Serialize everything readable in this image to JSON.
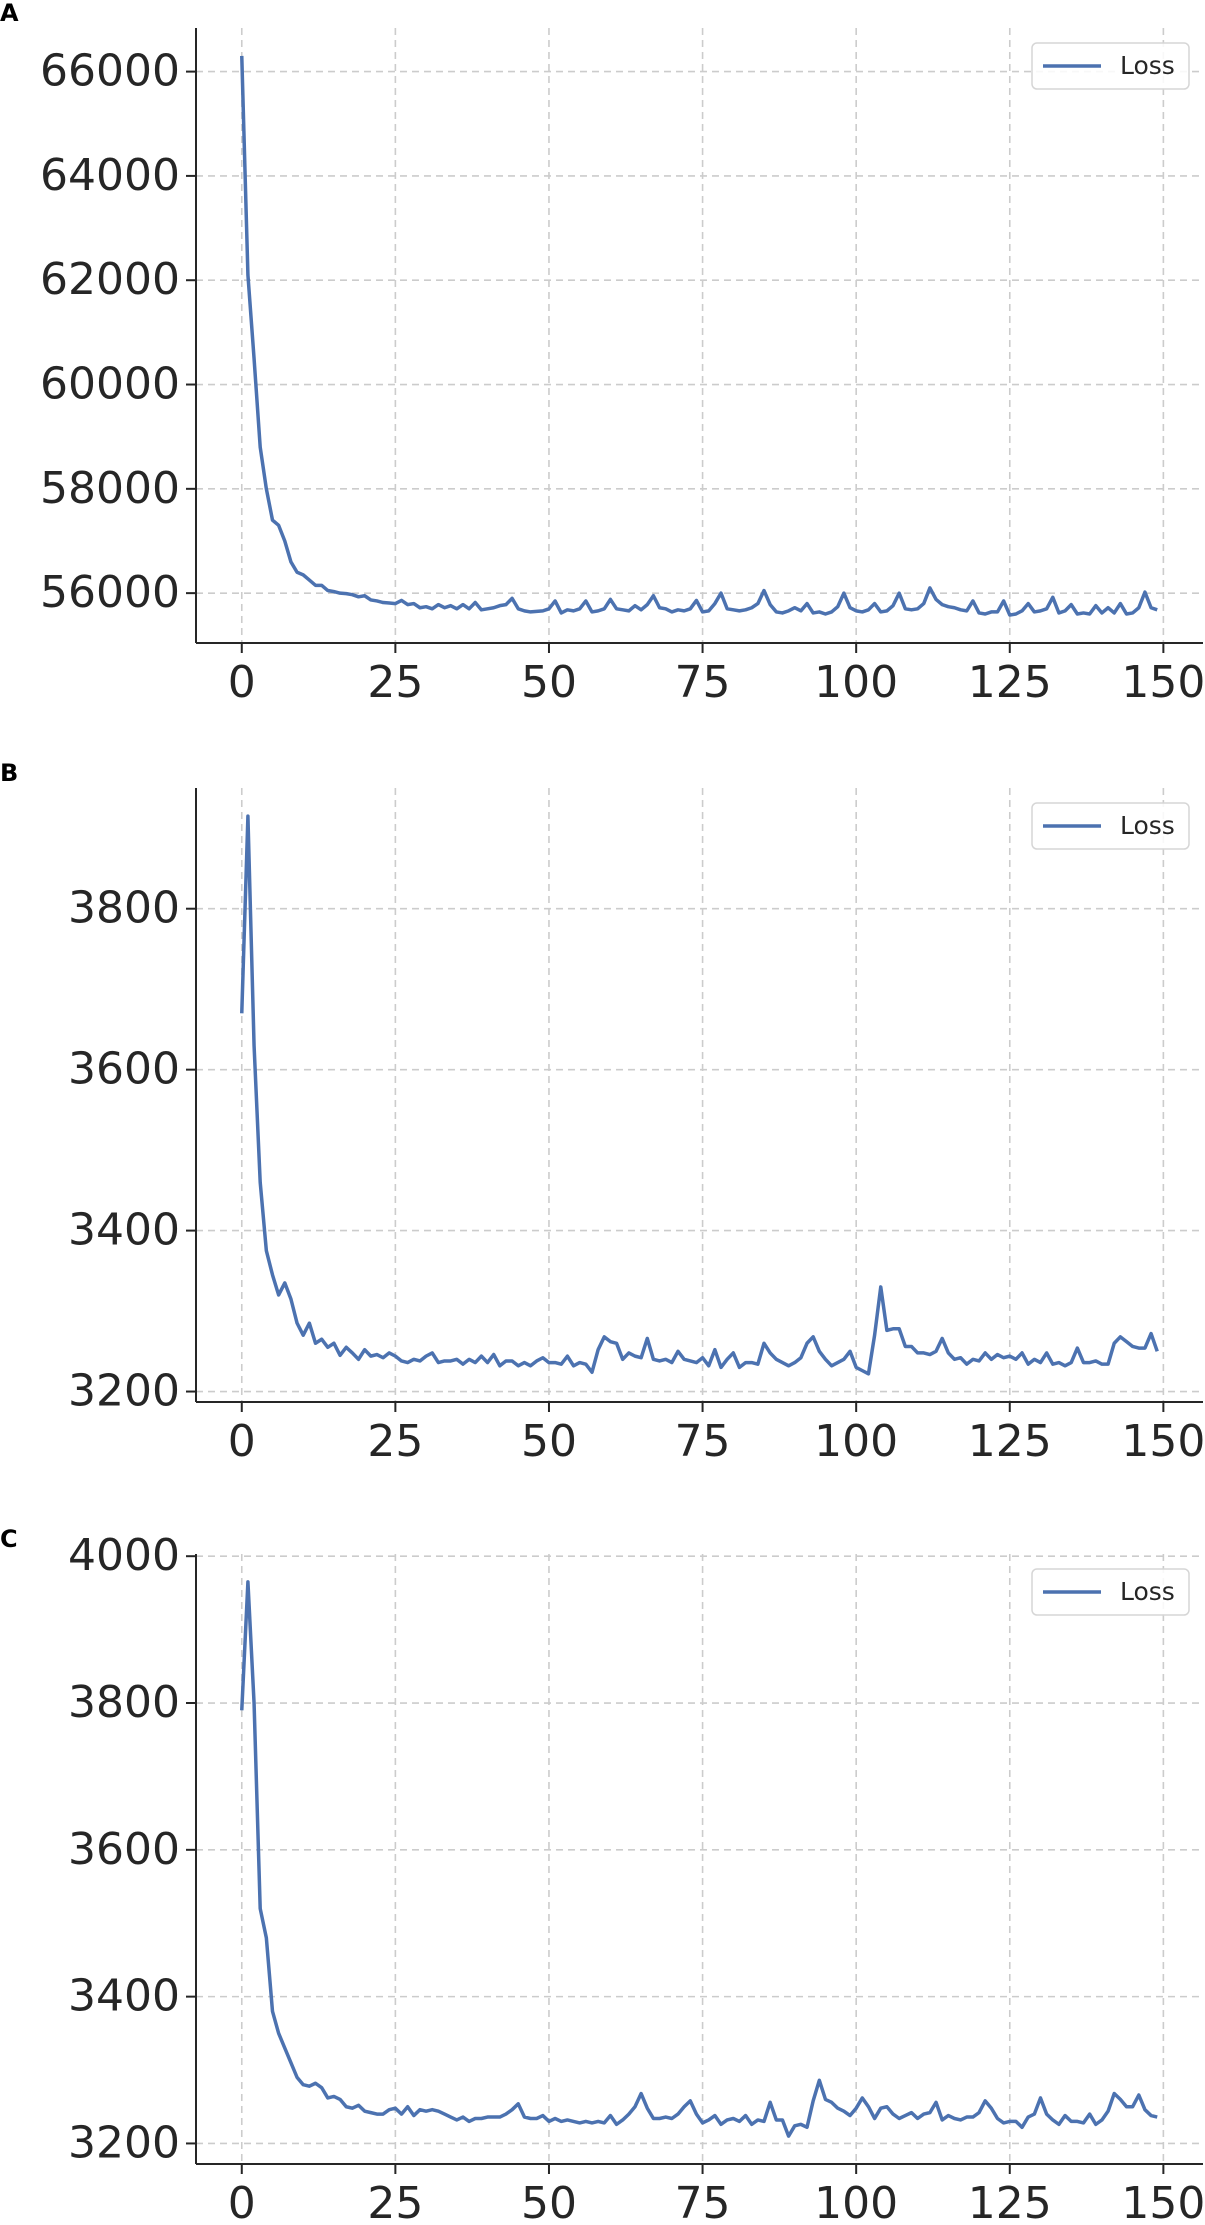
{
  "chart_data": [
    {
      "type": "line",
      "panel_label": "A",
      "x": [
        0,
        1,
        2,
        3,
        4,
        5,
        6,
        7,
        8,
        9,
        10,
        11,
        12,
        13,
        14,
        15,
        16,
        17,
        18,
        19,
        20,
        21,
        22,
        23,
        24,
        25,
        26,
        27,
        28,
        29,
        30,
        31,
        32,
        33,
        34,
        35,
        36,
        37,
        38,
        39,
        40,
        41,
        42,
        43,
        44,
        45,
        46,
        47,
        48,
        49,
        50,
        51,
        52,
        53,
        54,
        55,
        56,
        57,
        58,
        59,
        60,
        61,
        62,
        63,
        64,
        65,
        66,
        67,
        68,
        69,
        70,
        71,
        72,
        73,
        74,
        75,
        76,
        77,
        78,
        79,
        80,
        81,
        82,
        83,
        84,
        85,
        86,
        87,
        88,
        89,
        90,
        91,
        92,
        93,
        94,
        95,
        96,
        97,
        98,
        99,
        100,
        101,
        102,
        103,
        104,
        105,
        106,
        107,
        108,
        109,
        110,
        111,
        112,
        113,
        114,
        115,
        116,
        117,
        118,
        119,
        120,
        121,
        122,
        123,
        124,
        125,
        126,
        127,
        128,
        129,
        130,
        131,
        132,
        133,
        134,
        135,
        136,
        137,
        138,
        139,
        140,
        141,
        142,
        143,
        144,
        145,
        146,
        147,
        148,
        149
      ],
      "series": [
        {
          "name": "Loss",
          "color": "#4c72b0",
          "values": [
            66300,
            62100,
            60500,
            58800,
            58000,
            57400,
            57300,
            57000,
            56600,
            56400,
            56350,
            56250,
            56150,
            56150,
            56050,
            56030,
            56000,
            55990,
            55970,
            55930,
            55950,
            55870,
            55850,
            55820,
            55810,
            55800,
            55860,
            55780,
            55800,
            55720,
            55740,
            55700,
            55780,
            55720,
            55760,
            55700,
            55780,
            55700,
            55820,
            55680,
            55700,
            55720,
            55760,
            55780,
            55900,
            55700,
            55660,
            55640,
            55650,
            55660,
            55700,
            55850,
            55620,
            55680,
            55660,
            55700,
            55850,
            55640,
            55660,
            55700,
            55880,
            55700,
            55680,
            55660,
            55760,
            55680,
            55780,
            55950,
            55720,
            55700,
            55640,
            55680,
            55660,
            55700,
            55860,
            55640,
            55660,
            55800,
            56000,
            55700,
            55680,
            55660,
            55680,
            55720,
            55800,
            56050,
            55780,
            55640,
            55620,
            55660,
            55720,
            55660,
            55800,
            55620,
            55640,
            55600,
            55640,
            55740,
            56000,
            55720,
            55660,
            55640,
            55680,
            55800,
            55640,
            55660,
            55760,
            56000,
            55700,
            55680,
            55700,
            55800,
            56100,
            55880,
            55780,
            55740,
            55720,
            55680,
            55660,
            55850,
            55620,
            55600,
            55640,
            55640,
            55850,
            55580,
            55600,
            55660,
            55800,
            55640,
            55660,
            55700,
            55920,
            55620,
            55660,
            55780,
            55600,
            55620,
            55600,
            55760,
            55620,
            55720,
            55620,
            55800,
            55600,
            55620,
            55720,
            56020,
            55720,
            55680
          ]
        }
      ],
      "xlim": [
        -7.45,
        156.45
      ],
      "ylim": [
        55044,
        66836
      ],
      "xticks": [
        0,
        25,
        50,
        75,
        100,
        125,
        150
      ],
      "yticks": [
        56000,
        58000,
        60000,
        62000,
        64000,
        66000
      ],
      "grid": true,
      "legend": "upper right"
    },
    {
      "type": "line",
      "panel_label": "B",
      "x": [
        0,
        1,
        2,
        3,
        4,
        5,
        6,
        7,
        8,
        9,
        10,
        11,
        12,
        13,
        14,
        15,
        16,
        17,
        18,
        19,
        20,
        21,
        22,
        23,
        24,
        25,
        26,
        27,
        28,
        29,
        30,
        31,
        32,
        33,
        34,
        35,
        36,
        37,
        38,
        39,
        40,
        41,
        42,
        43,
        44,
        45,
        46,
        47,
        48,
        49,
        50,
        51,
        52,
        53,
        54,
        55,
        56,
        57,
        58,
        59,
        60,
        61,
        62,
        63,
        64,
        65,
        66,
        67,
        68,
        69,
        70,
        71,
        72,
        73,
        74,
        75,
        76,
        77,
        78,
        79,
        80,
        81,
        82,
        83,
        84,
        85,
        86,
        87,
        88,
        89,
        90,
        91,
        92,
        93,
        94,
        95,
        96,
        97,
        98,
        99,
        100,
        101,
        102,
        103,
        104,
        105,
        106,
        107,
        108,
        109,
        110,
        111,
        112,
        113,
        114,
        115,
        116,
        117,
        118,
        119,
        120,
        121,
        122,
        123,
        124,
        125,
        126,
        127,
        128,
        129,
        130,
        131,
        132,
        133,
        134,
        135,
        136,
        137,
        138,
        139,
        140,
        141,
        142,
        143,
        144,
        145,
        146,
        147,
        148,
        149
      ],
      "series": [
        {
          "name": "Loss",
          "color": "#4c72b0",
          "values": [
            3670,
            3915,
            3630,
            3460,
            3375,
            3345,
            3320,
            3335,
            3315,
            3285,
            3270,
            3285,
            3260,
            3265,
            3255,
            3260,
            3245,
            3255,
            3248,
            3240,
            3252,
            3244,
            3246,
            3242,
            3248,
            3244,
            3238,
            3236,
            3240,
            3238,
            3244,
            3248,
            3236,
            3238,
            3238,
            3240,
            3234,
            3240,
            3236,
            3244,
            3236,
            3246,
            3232,
            3238,
            3238,
            3232,
            3236,
            3232,
            3238,
            3242,
            3236,
            3236,
            3234,
            3244,
            3232,
            3236,
            3234,
            3224,
            3252,
            3268,
            3262,
            3260,
            3240,
            3248,
            3244,
            3242,
            3266,
            3240,
            3238,
            3240,
            3236,
            3250,
            3240,
            3238,
            3236,
            3242,
            3232,
            3252,
            3230,
            3240,
            3248,
            3230,
            3236,
            3236,
            3234,
            3260,
            3248,
            3240,
            3236,
            3232,
            3236,
            3242,
            3260,
            3268,
            3250,
            3240,
            3232,
            3236,
            3240,
            3250,
            3230,
            3226,
            3222,
            3270,
            3330,
            3276,
            3278,
            3278,
            3256,
            3256,
            3248,
            3248,
            3246,
            3250,
            3266,
            3248,
            3240,
            3242,
            3234,
            3240,
            3238,
            3248,
            3240,
            3246,
            3242,
            3244,
            3240,
            3248,
            3234,
            3240,
            3236,
            3248,
            3234,
            3236,
            3232,
            3236,
            3254,
            3236,
            3236,
            3238,
            3234,
            3234,
            3260,
            3268,
            3262,
            3256,
            3254,
            3254,
            3272,
            3250
          ]
        }
      ],
      "xlim": [
        -7.45,
        156.45
      ],
      "ylim": [
        3187,
        3950
      ],
      "xticks": [
        0,
        25,
        50,
        75,
        100,
        125,
        150
      ],
      "yticks": [
        3200,
        3400,
        3600,
        3800
      ],
      "grid": true,
      "legend": "upper right"
    },
    {
      "type": "line",
      "panel_label": "C",
      "x": [
        0,
        1,
        2,
        3,
        4,
        5,
        6,
        7,
        8,
        9,
        10,
        11,
        12,
        13,
        14,
        15,
        16,
        17,
        18,
        19,
        20,
        21,
        22,
        23,
        24,
        25,
        26,
        27,
        28,
        29,
        30,
        31,
        32,
        33,
        34,
        35,
        36,
        37,
        38,
        39,
        40,
        41,
        42,
        43,
        44,
        45,
        46,
        47,
        48,
        49,
        50,
        51,
        52,
        53,
        54,
        55,
        56,
        57,
        58,
        59,
        60,
        61,
        62,
        63,
        64,
        65,
        66,
        67,
        68,
        69,
        70,
        71,
        72,
        73,
        74,
        75,
        76,
        77,
        78,
        79,
        80,
        81,
        82,
        83,
        84,
        85,
        86,
        87,
        88,
        89,
        90,
        91,
        92,
        93,
        94,
        95,
        96,
        97,
        98,
        99,
        100,
        101,
        102,
        103,
        104,
        105,
        106,
        107,
        108,
        109,
        110,
        111,
        112,
        113,
        114,
        115,
        116,
        117,
        118,
        119,
        120,
        121,
        122,
        123,
        124,
        125,
        126,
        127,
        128,
        129,
        130,
        131,
        132,
        133,
        134,
        135,
        136,
        137,
        138,
        139,
        140,
        141,
        142,
        143,
        144,
        145,
        146,
        147,
        148,
        149
      ],
      "series": [
        {
          "name": "Loss",
          "color": "#4c72b0",
          "values": [
            3790,
            3965,
            3800,
            3520,
            3480,
            3380,
            3350,
            3330,
            3310,
            3290,
            3280,
            3278,
            3282,
            3276,
            3262,
            3264,
            3260,
            3250,
            3248,
            3252,
            3244,
            3242,
            3240,
            3240,
            3246,
            3248,
            3240,
            3250,
            3238,
            3246,
            3244,
            3246,
            3244,
            3240,
            3236,
            3232,
            3236,
            3230,
            3234,
            3234,
            3236,
            3236,
            3236,
            3240,
            3246,
            3254,
            3236,
            3234,
            3234,
            3238,
            3230,
            3234,
            3230,
            3232,
            3230,
            3228,
            3230,
            3228,
            3230,
            3228,
            3238,
            3226,
            3232,
            3240,
            3250,
            3268,
            3248,
            3234,
            3234,
            3236,
            3234,
            3240,
            3250,
            3258,
            3240,
            3228,
            3232,
            3238,
            3226,
            3232,
            3234,
            3230,
            3238,
            3226,
            3232,
            3230,
            3256,
            3232,
            3232,
            3210,
            3224,
            3226,
            3222,
            3258,
            3286,
            3260,
            3256,
            3248,
            3244,
            3238,
            3248,
            3262,
            3250,
            3234,
            3248,
            3250,
            3240,
            3234,
            3238,
            3242,
            3234,
            3240,
            3242,
            3256,
            3232,
            3238,
            3234,
            3232,
            3236,
            3236,
            3242,
            3258,
            3248,
            3234,
            3228,
            3230,
            3230,
            3222,
            3236,
            3240,
            3262,
            3240,
            3232,
            3226,
            3238,
            3230,
            3230,
            3228,
            3240,
            3226,
            3232,
            3244,
            3268,
            3260,
            3250,
            3250,
            3266,
            3246,
            3238,
            3236
          ]
        }
      ],
      "xlim": [
        -7.45,
        156.45
      ],
      "ylim": [
        3172,
        4003
      ],
      "xticks": [
        0,
        25,
        50,
        75,
        100,
        125,
        150
      ],
      "yticks": [
        3200,
        3400,
        3600,
        3800,
        4000
      ],
      "grid": true,
      "legend": "upper right"
    }
  ]
}
